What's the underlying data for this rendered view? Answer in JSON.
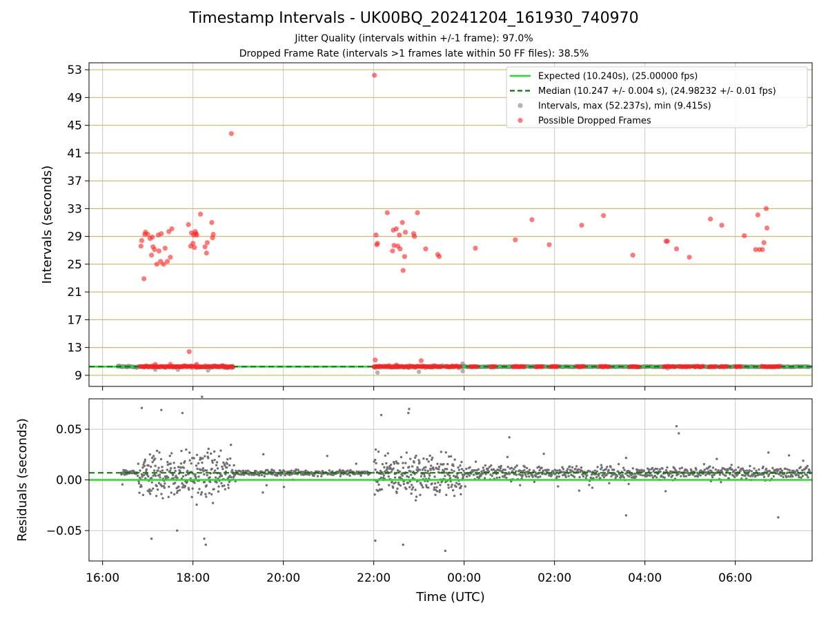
{
  "title": "Timestamp Intervals - UK00BQ_20241204_161930_740970",
  "subtitle1": "Jitter Quality (intervals within +/-1 frame): 97.0%",
  "subtitle2": "Dropped Frame Rate (intervals >1 frames late within 50 FF files): 38.5%",
  "colors": {
    "expected": "#22dd22",
    "median": "#007700",
    "intervals": "#808080",
    "dropped": "#ff2020",
    "hgrid_top": "#d4b870",
    "grid": "#c8c8c8",
    "residuals": "#707070"
  },
  "chart_data": [
    {
      "type": "scatter",
      "xlabel": "",
      "ylabel": "Intervals (seconds)",
      "xlim": [
        "15:42",
        "07:42"
      ],
      "ylim": [
        7.4,
        54.0
      ],
      "y_ticks": [
        "9",
        "13",
        "17",
        "21",
        "25",
        "29",
        "33",
        "37",
        "41",
        "45",
        "49",
        "53"
      ],
      "grid": true,
      "legend_position": "top-right",
      "legend": [
        {
          "label": "Expected (10.240s), (25.00000 fps)",
          "marker": "line",
          "color": "#22dd22"
        },
        {
          "label": "Median (10.247 +/- 0.004 s), (24.98232 +/- 0.01 fps)",
          "marker": "dashed-line",
          "color": "#007700"
        },
        {
          "label": "Intervals, max (52.237s), min (9.415s)",
          "marker": "dot",
          "color": "#808080"
        },
        {
          "label": "Possible Dropped Frames",
          "marker": "dot",
          "color": "#ff2020"
        }
      ],
      "expected_interval": 10.24,
      "median_interval": 10.247,
      "intervals_max": 52.237,
      "intervals_min": 9.415,
      "dense_interval_band": [
        {
          "start": "16:20",
          "end": "18:54",
          "value": 10.24
        },
        {
          "start": "22:00",
          "end": "23:58",
          "value": 10.24
        },
        {
          "start": "23:58",
          "end": "07:40",
          "value": 10.24
        }
      ],
      "dropped_bands": [
        {
          "start": "16:50",
          "end": "18:54"
        },
        {
          "start": "22:00",
          "end": "23:30"
        },
        {
          "start": "23:35",
          "end": "23:55"
        },
        {
          "start": "00:08",
          "end": "00:18"
        },
        {
          "start": "00:35",
          "end": "00:42"
        },
        {
          "start": "01:05",
          "end": "01:20"
        },
        {
          "start": "01:35",
          "end": "01:45"
        },
        {
          "start": "01:55",
          "end": "02:05"
        },
        {
          "start": "02:30",
          "end": "02:40"
        },
        {
          "start": "03:00",
          "end": "03:12"
        },
        {
          "start": "03:40",
          "end": "03:52"
        },
        {
          "start": "04:25",
          "end": "04:40"
        },
        {
          "start": "04:45",
          "end": "05:00"
        },
        {
          "start": "05:05",
          "end": "05:18"
        },
        {
          "start": "05:25",
          "end": "05:35"
        },
        {
          "start": "05:40",
          "end": "05:50"
        },
        {
          "start": "06:00",
          "end": "06:08"
        },
        {
          "start": "06:35",
          "end": "07:00"
        }
      ],
      "series": [
        {
          "name": "Possible Dropped Frames",
          "points": [
            [
              "16:51",
              27.6
            ],
            [
              "16:52",
              28.4
            ],
            [
              "16:55",
              22.9
            ],
            [
              "16:56",
              29.3
            ],
            [
              "16:57",
              29.6
            ],
            [
              "17:00",
              29.3
            ],
            [
              "17:03",
              28.7
            ],
            [
              "17:05",
              26.3
            ],
            [
              "17:06",
              28.9
            ],
            [
              "17:07",
              27.5
            ],
            [
              "17:09",
              27.1
            ],
            [
              "17:12",
              25.0
            ],
            [
              "17:14",
              29.2
            ],
            [
              "17:15",
              26.9
            ],
            [
              "17:17",
              25.4
            ],
            [
              "17:18",
              29.4
            ],
            [
              "17:21",
              25.0
            ],
            [
              "17:23",
              27.3
            ],
            [
              "17:26",
              25.4
            ],
            [
              "17:28",
              29.7
            ],
            [
              "17:30",
              26.0
            ],
            [
              "17:32",
              30.1
            ],
            [
              "17:54",
              30.7
            ],
            [
              "17:57",
              27.6
            ],
            [
              "17:58",
              29.5
            ],
            [
              "18:00",
              28.0
            ],
            [
              "18:01",
              29.2
            ],
            [
              "18:02",
              27.4
            ],
            [
              "18:03",
              29.7
            ],
            [
              "18:04",
              29.4
            ],
            [
              "18:05",
              29.2
            ],
            [
              "18:10",
              32.2
            ],
            [
              "18:16",
              27.5
            ],
            [
              "18:18",
              26.6
            ],
            [
              "18:19",
              28.1
            ],
            [
              "18:25",
              31.0
            ],
            [
              "18:26",
              28.8
            ],
            [
              "18:27",
              29.3
            ],
            [
              "18:51",
              43.8
            ],
            [
              "17:55",
              12.4
            ],
            [
              "22:01",
              52.2
            ],
            [
              "22:02",
              11.2
            ],
            [
              "22:03",
              29.2
            ],
            [
              "22:04",
              27.8
            ],
            [
              "22:05",
              28.0
            ],
            [
              "22:18",
              32.4
            ],
            [
              "22:25",
              26.9
            ],
            [
              "22:26",
              29.9
            ],
            [
              "22:27",
              27.7
            ],
            [
              "22:30",
              30.1
            ],
            [
              "22:32",
              27.6
            ],
            [
              "22:34",
              29.2
            ],
            [
              "22:35",
              27.2
            ],
            [
              "22:38",
              31.0
            ],
            [
              "22:39",
              24.1
            ],
            [
              "22:41",
              26.1
            ],
            [
              "22:42",
              29.6
            ],
            [
              "22:53",
              29.4
            ],
            [
              "22:54",
              29.0
            ],
            [
              "22:58",
              32.4
            ],
            [
              "23:09",
              27.2
            ],
            [
              "23:03",
              11.1
            ],
            [
              "23:25",
              26.4
            ],
            [
              "23:27",
              26.1
            ],
            [
              "00:15",
              27.3
            ],
            [
              "01:08",
              28.5
            ],
            [
              "01:30",
              31.4
            ],
            [
              "01:53",
              27.8
            ],
            [
              "02:36",
              30.6
            ],
            [
              "03:05",
              32.0
            ],
            [
              "03:44",
              26.3
            ],
            [
              "04:28",
              28.3
            ],
            [
              "04:30",
              28.3
            ],
            [
              "04:42",
              27.2
            ],
            [
              "04:59",
              26.0
            ],
            [
              "05:27",
              31.5
            ],
            [
              "05:42",
              30.6
            ],
            [
              "06:12",
              29.1
            ],
            [
              "06:27",
              27.1
            ],
            [
              "06:30",
              32.1
            ],
            [
              "06:32",
              27.1
            ],
            [
              "06:36",
              27.1
            ],
            [
              "06:38",
              28.1
            ],
            [
              "06:41",
              33.0
            ],
            [
              "06:42",
              30.2
            ]
          ]
        }
      ],
      "x_ticks": [
        "16:00",
        "18:00",
        "20:00",
        "22:00",
        "00:00",
        "02:00",
        "04:00",
        "06:00"
      ]
    },
    {
      "type": "scatter",
      "xlabel": "Time (UTC)",
      "ylabel": "Residuals (seconds)",
      "xlim": [
        "15:42",
        "07:42"
      ],
      "ylim": [
        -0.08,
        0.08
      ],
      "y_ticks": [
        "−0.05",
        "0.00",
        "0.05"
      ],
      "x_ticks": [
        "16:00",
        "18:00",
        "20:00",
        "22:00",
        "00:00",
        "02:00",
        "04:00",
        "06:00"
      ],
      "grid": true,
      "expected_residual": 0.0,
      "median_residual": 0.007,
      "residual_segments": [
        {
          "start": "16:25",
          "end": "16:48",
          "center": 0.007,
          "spread": 0.004
        },
        {
          "start": "16:48",
          "end": "18:55",
          "center": 0.005,
          "spread": 0.035
        },
        {
          "start": "18:55",
          "end": "21:55",
          "center": 0.007,
          "spread": 0.004
        },
        {
          "start": "22:00",
          "end": "23:58",
          "center": 0.005,
          "spread": 0.03
        },
        {
          "start": "23:58",
          "end": "07:40",
          "center": 0.007,
          "spread": 0.009
        }
      ],
      "outliers": [
        [
          "16:52",
          0.071
        ],
        [
          "17:05",
          -0.058
        ],
        [
          "17:18",
          0.069
        ],
        [
          "17:46",
          0.066
        ],
        [
          "18:12",
          0.082
        ],
        [
          "18:15",
          -0.058
        ],
        [
          "18:17",
          -0.064
        ],
        [
          "17:39",
          -0.05
        ],
        [
          "22:10",
          0.064
        ],
        [
          "22:39",
          -0.064
        ],
        [
          "22:46",
          0.066
        ],
        [
          "22:47",
          0.07
        ],
        [
          "23:35",
          -0.07
        ],
        [
          "22:02",
          -0.06
        ],
        [
          "04:42",
          0.053
        ],
        [
          "04:45",
          0.046
        ],
        [
          "06:57",
          -0.037
        ],
        [
          "01:00",
          0.042
        ],
        [
          "06:44",
          0.027
        ],
        [
          "03:35",
          -0.035
        ]
      ]
    }
  ]
}
